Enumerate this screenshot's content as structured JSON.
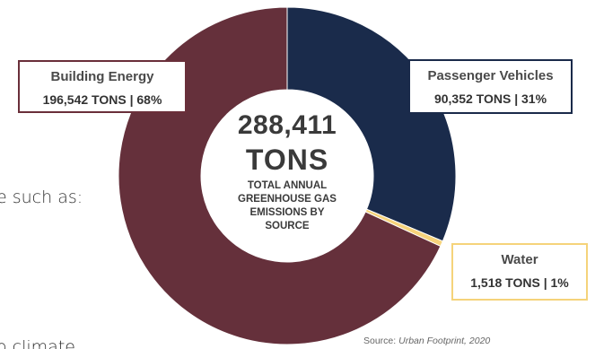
{
  "background_text": {
    "line1": "e such as:",
    "line2": "o climate"
  },
  "center": {
    "value": "288,411",
    "unit": "TONS",
    "caption": "TOTAL ANNUAL GREENHOUSE GAS EMISSIONS BY SOURCE"
  },
  "labels": {
    "building": {
      "name": "Building Energy",
      "value": "196,542 TONS | 68%"
    },
    "passenger": {
      "name": "Passenger Vehicles",
      "value": "90,352 TONS | 31%"
    },
    "water": {
      "name": "Water",
      "value": "1,518 TONS | 1%"
    }
  },
  "source": {
    "label": "Source:",
    "name": "Urban Footprint, 2020"
  },
  "colors": {
    "building": "#65303b",
    "passenger": "#1a2b4b",
    "water": "#f6d37b",
    "inner": "#ffffff"
  },
  "chart_data": {
    "type": "pie",
    "donut": true,
    "title": "TOTAL ANNUAL GREENHOUSE GAS EMISSIONS BY SOURCE",
    "total": 288411,
    "total_unit": "TONS",
    "slices": [
      {
        "name": "Passenger Vehicles",
        "value": 90352,
        "percent": 31
      },
      {
        "name": "Water",
        "value": 1518,
        "percent": 1
      },
      {
        "name": "Building Energy",
        "value": 196542,
        "percent": 68
      }
    ]
  }
}
